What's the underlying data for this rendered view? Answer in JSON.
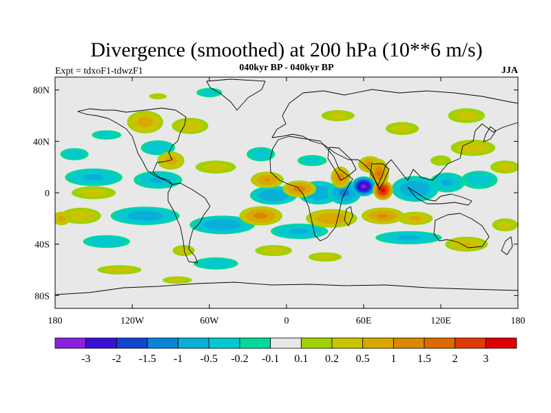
{
  "chart_data": {
    "type": "heatmap",
    "title": "Divergence (smoothed) at 200 hPa (10**6 m/s)",
    "subtitle_center": "040kyr BP - 040kyr BP",
    "subtitle_left": "Expt = tdxoF1-tdwzF1",
    "subtitle_right": "JJA",
    "xlim": [
      -180,
      180
    ],
    "ylim": [
      -90,
      90
    ],
    "x_ticks": [
      {
        "value": -180,
        "label": "180"
      },
      {
        "value": -120,
        "label": "120W"
      },
      {
        "value": -60,
        "label": "60W"
      },
      {
        "value": 0,
        "label": "0"
      },
      {
        "value": 60,
        "label": "60E"
      },
      {
        "value": 120,
        "label": "120E"
      },
      {
        "value": 180,
        "label": "180"
      }
    ],
    "y_ticks": [
      {
        "value": 80,
        "label": "80N"
      },
      {
        "value": 40,
        "label": "40N"
      },
      {
        "value": 0,
        "label": "0"
      },
      {
        "value": -40,
        "label": "40S"
      },
      {
        "value": -80,
        "label": "80S"
      }
    ],
    "colorbar": {
      "colors": [
        "#8a1fe0",
        "#3a10d8",
        "#1144d0",
        "#0a84d8",
        "#08b0d8",
        "#05c8cf",
        "#02d89a",
        "#e8e8e8",
        "#9ed200",
        "#c8c400",
        "#d8a800",
        "#d98800",
        "#dc6a00",
        "#e03a00",
        "#e00000"
      ],
      "labels": [
        "-3",
        "-2",
        "-1.5",
        "-1",
        "-0.5",
        "-0.2",
        "-0.1",
        "0.1",
        "0.2",
        "0.5",
        "1",
        "1.5",
        "2",
        "3"
      ]
    },
    "features": [
      {
        "lon": 60,
        "lat": 5,
        "value": -3.2,
        "rx": 10,
        "ry": 8
      },
      {
        "lon": 45,
        "lat": 0,
        "value": -1.2,
        "rx": 14,
        "ry": 10
      },
      {
        "lon": 25,
        "lat": 0,
        "value": -1.0,
        "rx": 18,
        "ry": 10
      },
      {
        "lon": -10,
        "lat": -2,
        "value": -1.0,
        "rx": 20,
        "ry": 8
      },
      {
        "lon": 100,
        "lat": 3,
        "value": -1.0,
        "rx": 20,
        "ry": 11
      },
      {
        "lon": 125,
        "lat": 8,
        "value": -0.6,
        "rx": 16,
        "ry": 9
      },
      {
        "lon": 150,
        "lat": 10,
        "value": -0.4,
        "rx": 18,
        "ry": 9
      },
      {
        "lon": -150,
        "lat": 12,
        "value": -0.6,
        "rx": 26,
        "ry": 8
      },
      {
        "lon": -100,
        "lat": 10,
        "value": -0.6,
        "rx": 22,
        "ry": 8
      },
      {
        "lon": -110,
        "lat": -18,
        "value": -0.8,
        "rx": 30,
        "ry": 8
      },
      {
        "lon": -50,
        "lat": -25,
        "value": -0.9,
        "rx": 28,
        "ry": 8
      },
      {
        "lon": 10,
        "lat": -30,
        "value": -0.6,
        "rx": 26,
        "ry": 7
      },
      {
        "lon": 95,
        "lat": -35,
        "value": -0.6,
        "rx": 30,
        "ry": 6
      },
      {
        "lon": -140,
        "lat": -38,
        "value": -0.5,
        "rx": 22,
        "ry": 6
      },
      {
        "lon": -55,
        "lat": -55,
        "value": -0.4,
        "rx": 22,
        "ry": 6
      },
      {
        "lon": -100,
        "lat": 35,
        "value": -0.5,
        "rx": 16,
        "ry": 7
      },
      {
        "lon": -165,
        "lat": 30,
        "value": -0.4,
        "rx": 14,
        "ry": 6
      },
      {
        "lon": -140,
        "lat": 45,
        "value": -0.3,
        "rx": 16,
        "ry": 5
      },
      {
        "lon": -20,
        "lat": 30,
        "value": -0.4,
        "rx": 14,
        "ry": 7
      },
      {
        "lon": 20,
        "lat": 25,
        "value": -0.3,
        "rx": 16,
        "ry": 6
      },
      {
        "lon": -60,
        "lat": 78,
        "value": -0.3,
        "rx": 14,
        "ry": 5
      },
      {
        "lon": 75,
        "lat": 2,
        "value": 3.2,
        "rx": 8,
        "ry": 8
      },
      {
        "lon": 72,
        "lat": 15,
        "value": 1.5,
        "rx": 8,
        "ry": 12
      },
      {
        "lon": 42,
        "lat": 12,
        "value": 1.3,
        "rx": 8,
        "ry": 9
      },
      {
        "lon": 65,
        "lat": 22,
        "value": 1.2,
        "rx": 10,
        "ry": 7
      },
      {
        "lon": 10,
        "lat": 3,
        "value": 1.3,
        "rx": 14,
        "ry": 7
      },
      {
        "lon": -15,
        "lat": 10,
        "value": 1.0,
        "rx": 14,
        "ry": 7
      },
      {
        "lon": -20,
        "lat": -18,
        "value": 1.2,
        "rx": 18,
        "ry": 8
      },
      {
        "lon": 35,
        "lat": -20,
        "value": 0.9,
        "rx": 22,
        "ry": 8
      },
      {
        "lon": 75,
        "lat": -18,
        "value": 1.1,
        "rx": 18,
        "ry": 7
      },
      {
        "lon": 100,
        "lat": -20,
        "value": 0.6,
        "rx": 16,
        "ry": 6
      },
      {
        "lon": -90,
        "lat": 25,
        "value": 0.7,
        "rx": 12,
        "ry": 8
      },
      {
        "lon": -110,
        "lat": 55,
        "value": 0.7,
        "rx": 16,
        "ry": 10
      },
      {
        "lon": -75,
        "lat": 52,
        "value": 0.4,
        "rx": 18,
        "ry": 8
      },
      {
        "lon": -55,
        "lat": 20,
        "value": 0.3,
        "rx": 22,
        "ry": 7
      },
      {
        "lon": -150,
        "lat": 0,
        "value": 0.3,
        "rx": 24,
        "ry": 7
      },
      {
        "lon": -160,
        "lat": -18,
        "value": 0.4,
        "rx": 20,
        "ry": 8
      },
      {
        "lon": -175,
        "lat": -20,
        "value": 0.7,
        "rx": 8,
        "ry": 6
      },
      {
        "lon": 145,
        "lat": 35,
        "value": 0.4,
        "rx": 22,
        "ry": 8
      },
      {
        "lon": 170,
        "lat": 20,
        "value": 0.3,
        "rx": 16,
        "ry": 7
      },
      {
        "lon": 120,
        "lat": 25,
        "value": 0.2,
        "rx": 14,
        "ry": 7
      },
      {
        "lon": 140,
        "lat": 60,
        "value": 0.3,
        "rx": 20,
        "ry": 8
      },
      {
        "lon": 90,
        "lat": 50,
        "value": 0.3,
        "rx": 18,
        "ry": 7
      },
      {
        "lon": 40,
        "lat": 60,
        "value": 0.3,
        "rx": 18,
        "ry": 6
      },
      {
        "lon": 140,
        "lat": -40,
        "value": 0.5,
        "rx": 20,
        "ry": 7
      },
      {
        "lon": 170,
        "lat": -25,
        "value": 0.3,
        "rx": 14,
        "ry": 7
      },
      {
        "lon": -80,
        "lat": -45,
        "value": 0.3,
        "rx": 12,
        "ry": 6
      },
      {
        "lon": -10,
        "lat": -45,
        "value": 0.3,
        "rx": 20,
        "ry": 6
      },
      {
        "lon": 30,
        "lat": -50,
        "value": 0.3,
        "rx": 18,
        "ry": 5
      },
      {
        "lon": -130,
        "lat": -60,
        "value": 0.3,
        "rx": 24,
        "ry": 5
      },
      {
        "lon": -85,
        "lat": -68,
        "value": 0.3,
        "rx": 16,
        "ry": 4
      },
      {
        "lon": -100,
        "lat": 75,
        "value": 0.2,
        "rx": 12,
        "ry": 4
      }
    ]
  }
}
